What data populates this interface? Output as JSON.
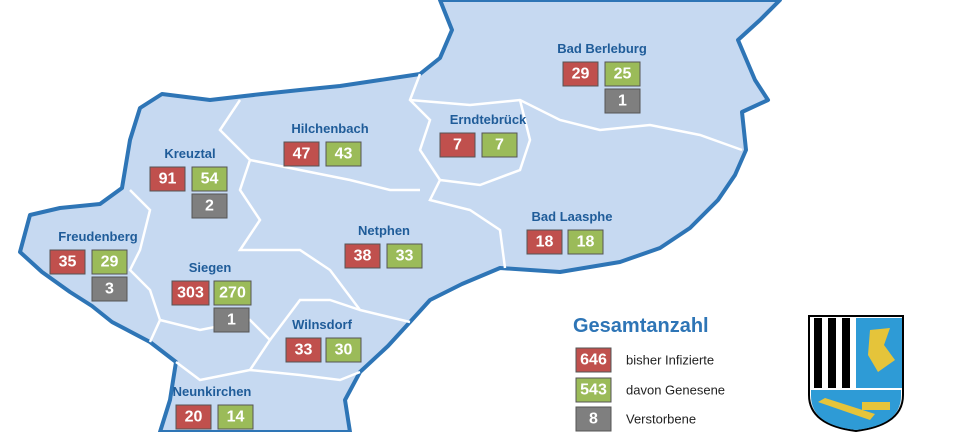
{
  "title": "Gesamtanzahl",
  "towns": [
    {
      "name": "Bad Berleburg",
      "infected": 29,
      "recovered": 25,
      "deceased": 1
    },
    {
      "name": "Erndtebrück",
      "infected": 7,
      "recovered": 7
    },
    {
      "name": "Hilchenbach",
      "infected": 47,
      "recovered": 43
    },
    {
      "name": "Kreuztal",
      "infected": 91,
      "recovered": 54,
      "deceased": 2
    },
    {
      "name": "Bad Laasphe",
      "infected": 18,
      "recovered": 18
    },
    {
      "name": "Freudenberg",
      "infected": 35,
      "recovered": 29,
      "deceased": 3
    },
    {
      "name": "Netphen",
      "infected": 38,
      "recovered": 33
    },
    {
      "name": "Siegen",
      "infected": 303,
      "recovered": 270,
      "deceased": 1
    },
    {
      "name": "Wilnsdorf",
      "infected": 33,
      "recovered": 30
    },
    {
      "name": "Neunkirchen",
      "infected": 20,
      "recovered": 14
    }
  ],
  "legend": [
    {
      "value": 646,
      "label": "bisher Infizierte"
    },
    {
      "value": 543,
      "label": "davon Genesene"
    },
    {
      "value": 8,
      "label": "Verstorbene"
    }
  ]
}
